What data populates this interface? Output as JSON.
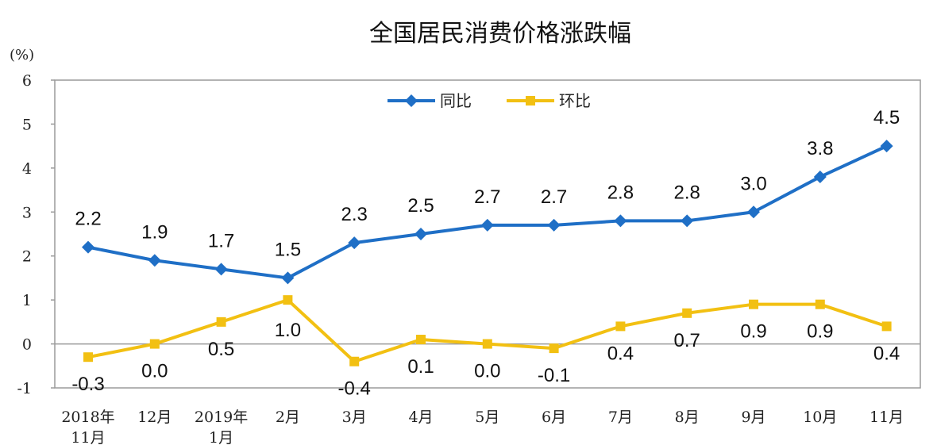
{
  "chart_data": {
    "type": "line",
    "title": "全国居民消费价格涨跌幅",
    "ylabel": "(%)",
    "xlabel": "",
    "ylim": [
      -1,
      6
    ],
    "yticks": [
      "6",
      "5",
      "4",
      "3",
      "2",
      "1",
      "0",
      "-1"
    ],
    "ytick_values": [
      6,
      5,
      4,
      3,
      2,
      1,
      0,
      -1
    ],
    "categories": [
      [
        "2018年",
        "11月"
      ],
      [
        "12月"
      ],
      [
        "2019年",
        "1月"
      ],
      [
        "2月"
      ],
      [
        "3月"
      ],
      [
        "4月"
      ],
      [
        "5月"
      ],
      [
        "6月"
      ],
      [
        "7月"
      ],
      [
        "8月"
      ],
      [
        "9月"
      ],
      [
        "10月"
      ],
      [
        "11月"
      ]
    ],
    "legend_position": "top-center",
    "grid": false,
    "series": [
      {
        "name": "同比",
        "color": "#1f6fc6",
        "marker": "diamond",
        "values": [
          2.2,
          1.9,
          1.7,
          1.5,
          2.3,
          2.5,
          2.7,
          2.7,
          2.8,
          2.8,
          3.0,
          3.8,
          4.5
        ],
        "labels": [
          "2.2",
          "1.9",
          "1.7",
          "1.5",
          "2.3",
          "2.5",
          "2.7",
          "2.7",
          "2.8",
          "2.8",
          "3.0",
          "3.8",
          "4.5"
        ]
      },
      {
        "name": "环比",
        "color": "#f2c012",
        "marker": "square",
        "values": [
          -0.3,
          0.0,
          0.5,
          1.0,
          -0.4,
          0.1,
          0.0,
          -0.1,
          0.4,
          0.7,
          0.9,
          0.9,
          0.4
        ],
        "labels": [
          "-0.3",
          "0.0",
          "0.5",
          "1.0",
          "-0.4",
          "0.1",
          "0.0",
          "-0.1",
          "0.4",
          "0.7",
          "0.9",
          "0.9",
          "0.4"
        ]
      }
    ]
  }
}
